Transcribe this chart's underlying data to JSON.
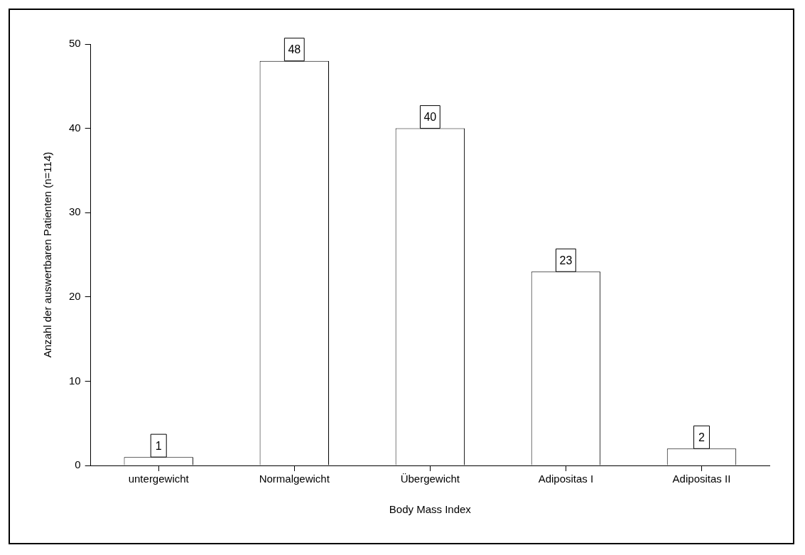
{
  "chart_data": {
    "type": "bar",
    "xlabel": "Body Mass Index",
    "ylabel": "Anzahl der auswertbaren Patienten (n=114)",
    "categories": [
      "untergewicht",
      "Normalgewicht",
      "Übergewicht",
      "Adipositas I",
      "Adipositas II"
    ],
    "values": [
      1,
      48,
      40,
      23,
      2
    ],
    "color": "#ffffff",
    "ylim": [
      0,
      50
    ],
    "yticks": [
      0,
      10,
      20,
      30,
      40,
      50
    ],
    "grid": false,
    "legend": false,
    "data_labels": true
  }
}
